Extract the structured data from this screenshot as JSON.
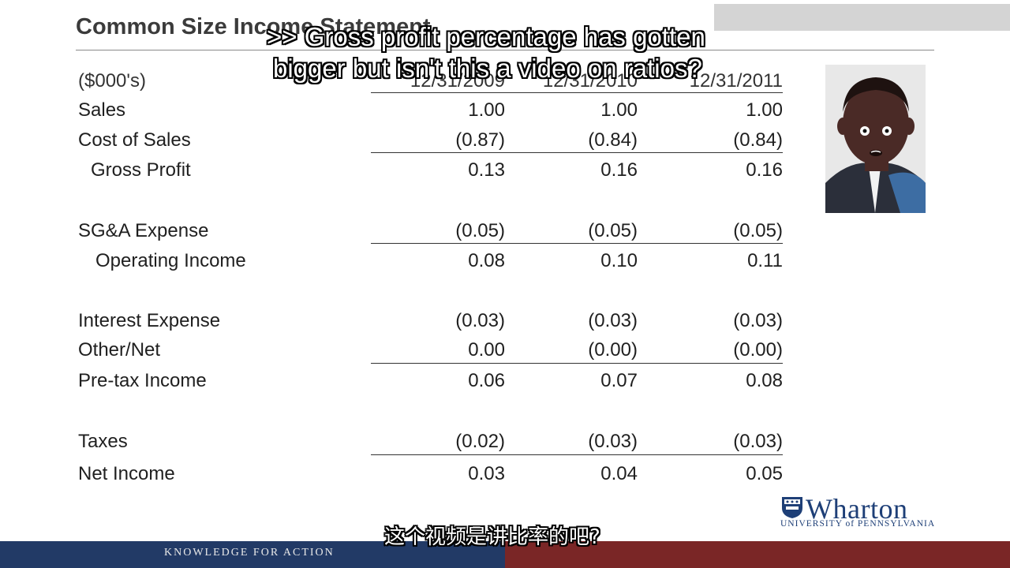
{
  "slide": {
    "title": "Common Size Income Statement",
    "units_label": "($000's)",
    "columns": [
      "12/31/2009",
      "12/31/2010",
      "12/31/2011"
    ],
    "rows": [
      {
        "label": "Sales",
        "values": [
          "1.00",
          "1.00",
          "1.00"
        ]
      },
      {
        "label": "Cost of Sales",
        "values": [
          "(0.87)",
          "(0.84)",
          "(0.84)"
        ]
      },
      {
        "label": "Gross Profit",
        "values": [
          "0.13",
          "0.16",
          "0.16"
        ]
      },
      {
        "label": "SG&A Expense",
        "values": [
          "(0.05)",
          "(0.05)",
          "(0.05)"
        ]
      },
      {
        "label": "Operating Income",
        "values": [
          "0.08",
          "0.10",
          "0.11"
        ]
      },
      {
        "label": "Interest Expense",
        "values": [
          "(0.03)",
          "(0.03)",
          "(0.03)"
        ]
      },
      {
        "label": "Other/Net",
        "values": [
          "0.00",
          "(0.00)",
          "(0.00)"
        ]
      },
      {
        "label": "Pre-tax Income",
        "values": [
          "0.06",
          "0.07",
          "0.08"
        ]
      },
      {
        "label": "Taxes",
        "values": [
          "(0.02)",
          "(0.03)",
          "(0.03)"
        ]
      },
      {
        "label": "Net Income",
        "values": [
          "0.03",
          "0.04",
          "0.05"
        ]
      }
    ]
  },
  "subtitles": {
    "line1": ">> Gross profit percentage has gotten",
    "line2": "bigger but isn't this a video on ratios?",
    "chinese": "这个视频是讲比率的吧?"
  },
  "branding": {
    "logo_word": "Wharton",
    "logo_sub": "UNIVERSITY of PENNSYLVANIA",
    "footer_text": "KNOWLEDGE FOR ACTION",
    "colors": {
      "navy": "#223a66",
      "maroon": "#7a2626"
    }
  }
}
